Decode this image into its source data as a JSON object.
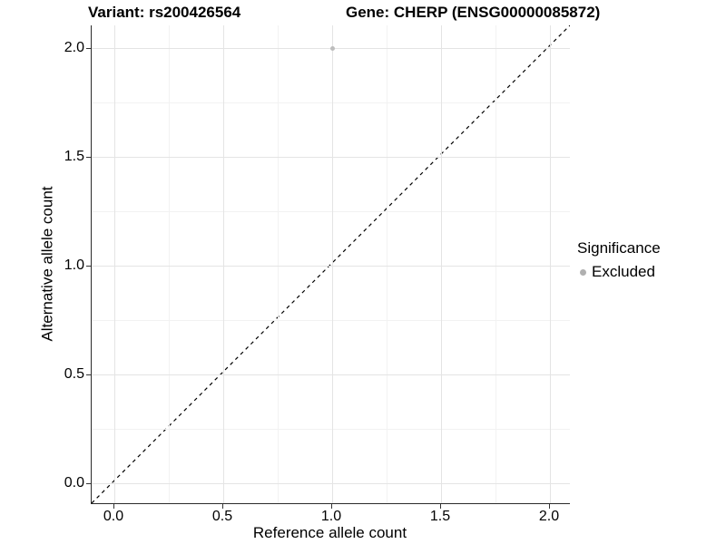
{
  "titles": {
    "variant": "Variant: rs200426564",
    "gene": "Gene: CHERP (ENSG00000085872)"
  },
  "colors": {
    "background": "#ffffff",
    "point": "#bdbdbd",
    "legend_dot": "#b0b0b0",
    "grid_major": "#e4e4e4",
    "grid_minor": "#f2f2f2",
    "axis_line": "#2b2b2b",
    "tick": "#333333",
    "dashed_line": "#000000",
    "text": "#000000"
  },
  "chart_data": {
    "type": "scatter",
    "title_left": "Variant: rs200426564",
    "title_right": "Gene: CHERP (ENSG00000085872)",
    "xlabel": "Reference allele count",
    "ylabel": "Alternative allele count",
    "xlim": [
      -0.105,
      2.105
    ],
    "ylim": [
      -0.105,
      2.105
    ],
    "x_ticks": [
      0.0,
      0.5,
      1.0,
      1.5,
      2.0
    ],
    "y_ticks": [
      0.0,
      0.5,
      1.0,
      1.5,
      2.0
    ],
    "x_tick_labels": [
      "0.0",
      "0.5",
      "1.0",
      "1.5",
      "2.0"
    ],
    "y_tick_labels": [
      "0.0",
      "0.5",
      "1.0",
      "1.5",
      "2.0"
    ],
    "minor_ticks": [
      0.25,
      0.75,
      1.25,
      1.75
    ],
    "grid": true,
    "points": [
      {
        "x": 1.0,
        "y": 2.0,
        "series": "Excluded"
      }
    ],
    "reference_line": {
      "equation": "y = x",
      "style": "dashed",
      "color": "#000000"
    },
    "legend": {
      "title": "Significance",
      "position": "right",
      "entries": [
        {
          "label": "Excluded",
          "color": "#b0b0b0"
        }
      ]
    }
  }
}
